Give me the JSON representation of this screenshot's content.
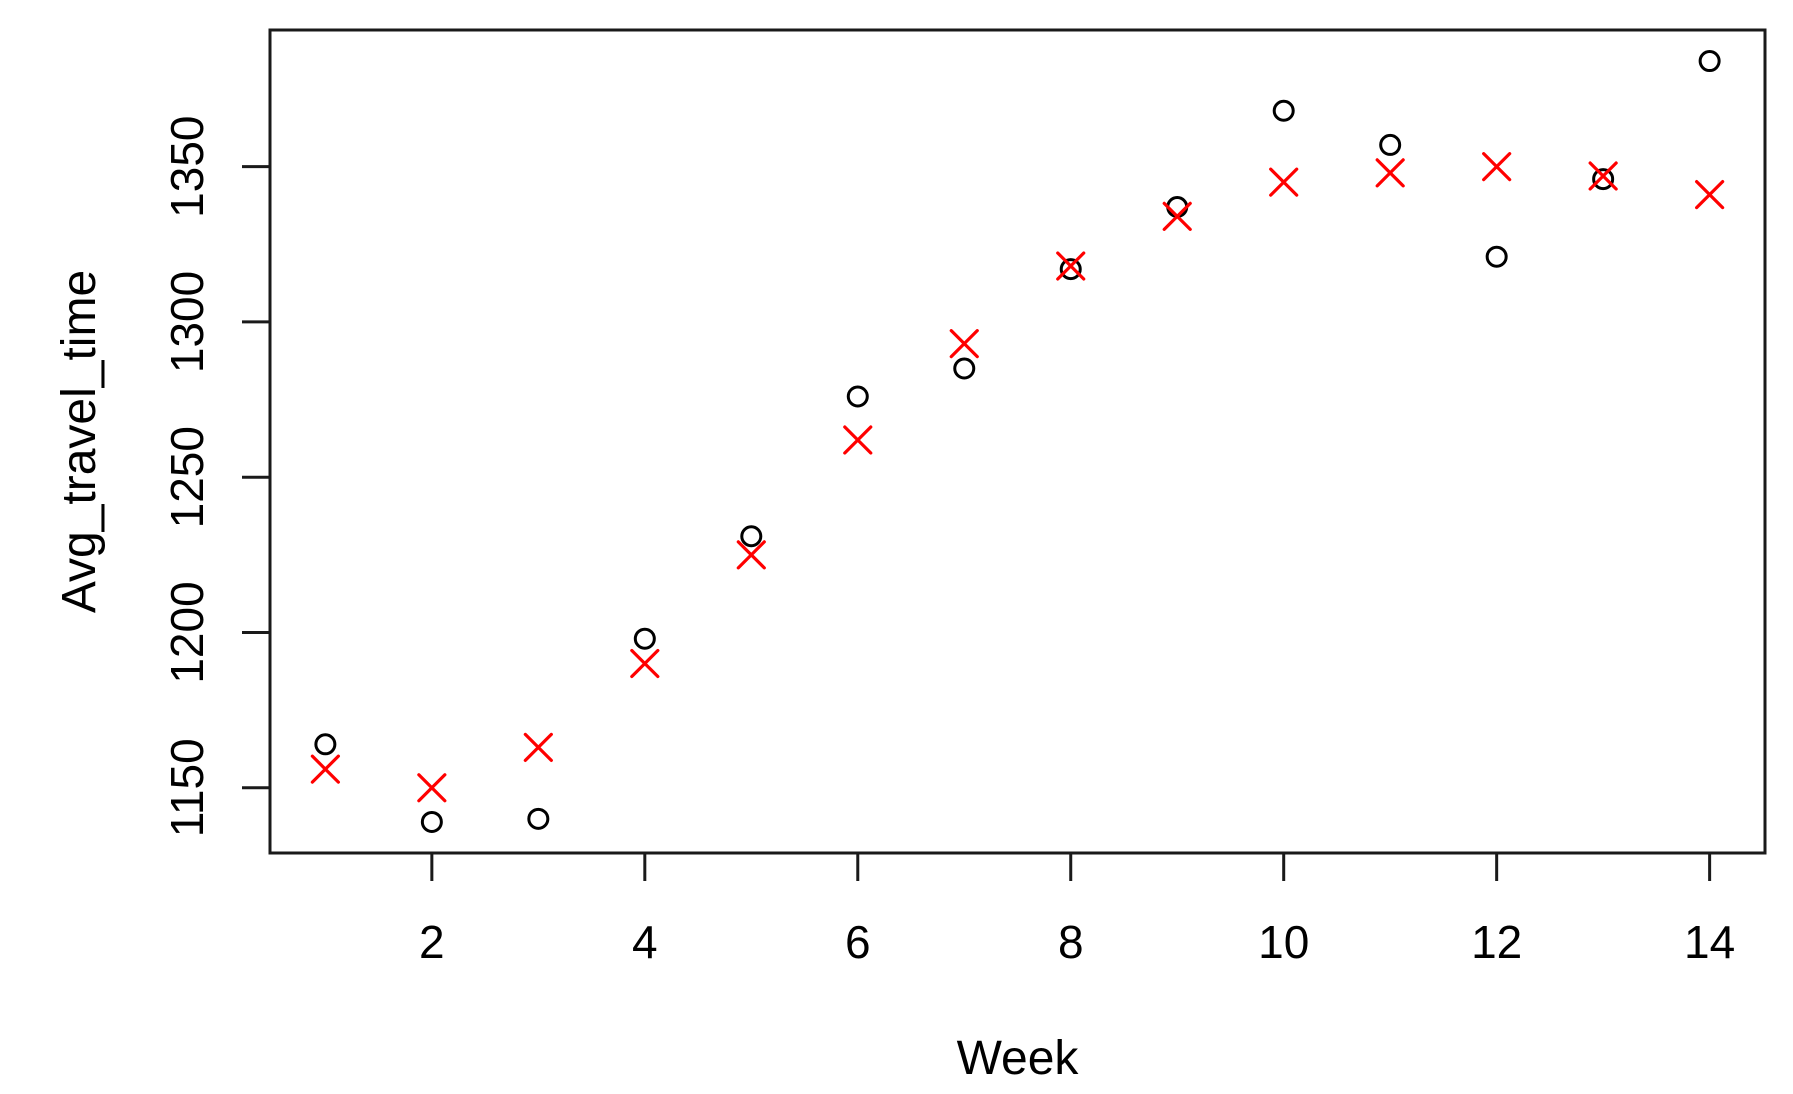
{
  "figure": {
    "background": "#ffffff",
    "frame_color": "#1a1a1a"
  },
  "chart_data": {
    "type": "scatter",
    "title": "",
    "xlabel": "Week",
    "ylabel": "Avg_travel_time",
    "x": [
      1,
      2,
      3,
      4,
      5,
      6,
      7,
      8,
      9,
      10,
      11,
      12,
      13,
      14
    ],
    "series": [
      {
        "name": "black-circles",
        "marker": "circle",
        "color": "#000000",
        "values": [
          1164,
          1139,
          1140,
          1198,
          1231,
          1276,
          1285,
          1317,
          1337,
          1368,
          1357,
          1321,
          1346,
          1384
        ]
      },
      {
        "name": "red-x-marks",
        "marker": "x",
        "color": "#ff0000",
        "values": [
          1156,
          1150,
          1163,
          1190,
          1225,
          1262,
          1293,
          1318,
          1334,
          1345,
          1348,
          1350,
          1347,
          1341
        ]
      }
    ],
    "x_ticks": [
      2,
      4,
      6,
      8,
      10,
      12,
      14
    ],
    "y_ticks": [
      1150,
      1200,
      1250,
      1300,
      1350
    ],
    "xlim": [
      0.48,
      14.52
    ],
    "ylim": [
      1129,
      1394
    ],
    "grid": false,
    "legend": null
  }
}
